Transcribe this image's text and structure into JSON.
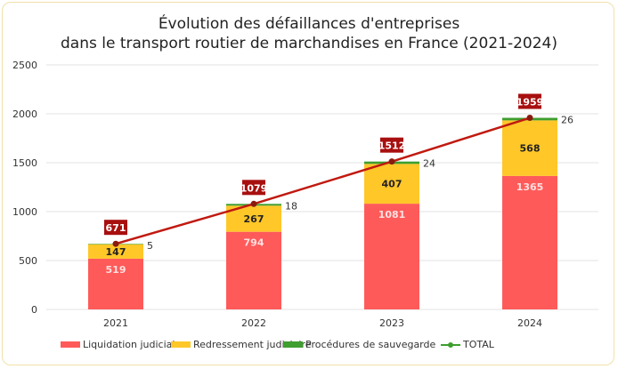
{
  "chart_data": {
    "type": "bar",
    "stacked": true,
    "title_line1": "Évolution des défaillances d'entreprises",
    "title_line2": "dans le transport routier de marchandises en France (2021-2024)",
    "categories": [
      "2021",
      "2022",
      "2023",
      "2024"
    ],
    "ylim": [
      0,
      2500
    ],
    "yticks": [
      "0",
      "500",
      "1000",
      "1500",
      "2000",
      "2500"
    ],
    "grid": true,
    "legend_position": "bottom",
    "series": [
      {
        "name": "Liquidation judiciaire",
        "values": [
          519,
          794,
          1081,
          1365
        ],
        "color": "#ff5a5a"
      },
      {
        "name": "Redressement judiciaire",
        "values": [
          147,
          267,
          407,
          568
        ],
        "color": "#ffc728"
      },
      {
        "name": "Procédures de sauvegarde",
        "values": [
          5,
          18,
          24,
          26
        ],
        "color": "#3e9e2e"
      }
    ],
    "line": {
      "name": "TOTAL",
      "values": [
        671,
        1079,
        1512,
        1959
      ],
      "color": "#c01a10",
      "label_bg": "#a80f0f"
    }
  }
}
